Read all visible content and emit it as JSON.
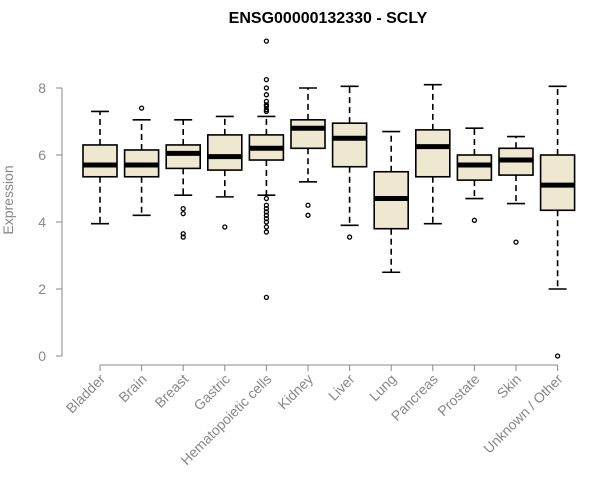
{
  "chart_data": {
    "type": "box",
    "title": "ENSG00000132330 - SCLY",
    "xlabel": "",
    "ylabel": "Expression",
    "ylim": [
      0,
      9.5
    ],
    "yticks": [
      0,
      2,
      4,
      6,
      8
    ],
    "grid": false,
    "box_color": "#efe8d0",
    "categories": [
      "Bladder",
      "Brain",
      "Breast",
      "Gastric",
      "Hematopoietic cells",
      "Kidney",
      "Liver",
      "Lung",
      "Pancreas",
      "Prostate",
      "Skin",
      "Unknown / Other"
    ],
    "boxes": [
      {
        "whisker_low": 3.95,
        "q1": 5.35,
        "median": 5.7,
        "q3": 6.3,
        "whisker_high": 7.3,
        "outliers": []
      },
      {
        "whisker_low": 4.2,
        "q1": 5.35,
        "median": 5.7,
        "q3": 6.15,
        "whisker_high": 7.05,
        "outliers": [
          7.4
        ]
      },
      {
        "whisker_low": 4.8,
        "q1": 5.6,
        "median": 6.05,
        "q3": 6.3,
        "whisker_high": 7.05,
        "outliers": [
          4.25,
          4.4,
          3.55,
          3.65
        ]
      },
      {
        "whisker_low": 4.75,
        "q1": 5.55,
        "median": 5.95,
        "q3": 6.6,
        "whisker_high": 7.15,
        "outliers": [
          3.85
        ]
      },
      {
        "whisker_low": 4.8,
        "q1": 5.85,
        "median": 6.2,
        "q3": 6.6,
        "whisker_high": 7.15,
        "outliers": [
          9.4,
          8.25,
          8.0,
          7.8,
          7.6,
          7.5,
          7.45,
          7.35,
          7.3,
          4.7,
          4.5,
          4.4,
          4.3,
          4.2,
          4.1,
          4.0,
          3.85,
          3.7,
          1.75
        ]
      },
      {
        "whisker_low": 5.2,
        "q1": 6.2,
        "median": 6.8,
        "q3": 7.05,
        "whisker_high": 8.0,
        "outliers": [
          4.5,
          4.2
        ]
      },
      {
        "whisker_low": 3.9,
        "q1": 5.65,
        "median": 6.5,
        "q3": 6.95,
        "whisker_high": 8.05,
        "outliers": [
          3.55
        ]
      },
      {
        "whisker_low": 2.5,
        "q1": 3.8,
        "median": 4.7,
        "q3": 5.5,
        "whisker_high": 6.7,
        "outliers": []
      },
      {
        "whisker_low": 3.95,
        "q1": 5.35,
        "median": 6.25,
        "q3": 6.75,
        "whisker_high": 8.1,
        "outliers": []
      },
      {
        "whisker_low": 4.7,
        "q1": 5.25,
        "median": 5.7,
        "q3": 6.0,
        "whisker_high": 6.8,
        "outliers": [
          4.05
        ]
      },
      {
        "whisker_low": 4.55,
        "q1": 5.4,
        "median": 5.85,
        "q3": 6.2,
        "whisker_high": 6.55,
        "outliers": [
          3.4
        ]
      },
      {
        "whisker_low": 2.0,
        "q1": 4.35,
        "median": 5.1,
        "q3": 6.0,
        "whisker_high": 8.05,
        "outliers": [
          0.0
        ]
      }
    ]
  }
}
